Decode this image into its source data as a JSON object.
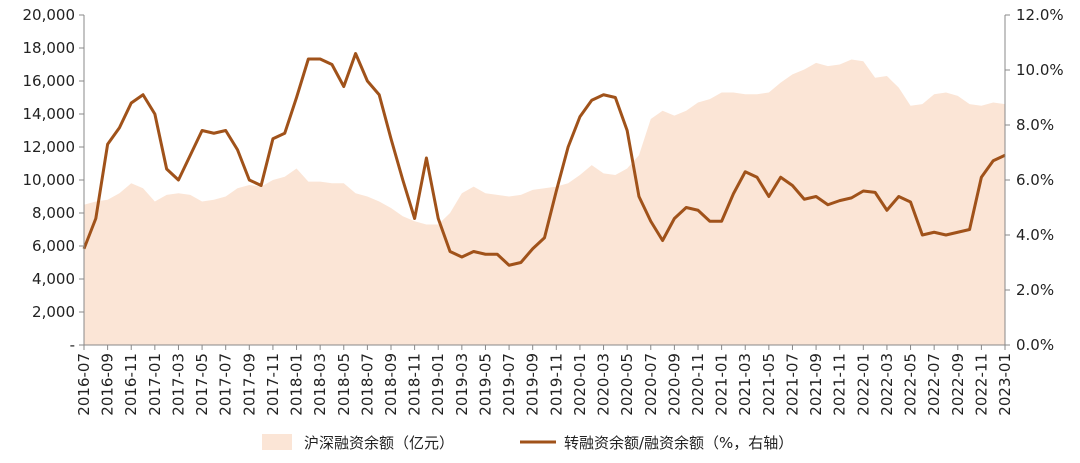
{
  "chart_data": {
    "type": "area",
    "categories": [
      "2016-07",
      "2016-08",
      "2016-09",
      "2016-10",
      "2016-11",
      "2016-12",
      "2017-01",
      "2017-02",
      "2017-03",
      "2017-04",
      "2017-05",
      "2017-06",
      "2017-07",
      "2017-08",
      "2017-09",
      "2017-10",
      "2017-11",
      "2017-12",
      "2018-01",
      "2018-02",
      "2018-03",
      "2018-04",
      "2018-05",
      "2018-06",
      "2018-07",
      "2018-08",
      "2018-09",
      "2018-10",
      "2018-11",
      "2018-12",
      "2019-01",
      "2019-02",
      "2019-03",
      "2019-04",
      "2019-05",
      "2019-06",
      "2019-07",
      "2019-08",
      "2019-09",
      "2019-10",
      "2019-11",
      "2019-12",
      "2020-01",
      "2020-02",
      "2020-03",
      "2020-04",
      "2020-05",
      "2020-06",
      "2020-07",
      "2020-08",
      "2020-09",
      "2020-10",
      "2020-11",
      "2020-12",
      "2021-01",
      "2021-02",
      "2021-03",
      "2021-04",
      "2021-05",
      "2021-06",
      "2021-07",
      "2021-08",
      "2021-09",
      "2021-10",
      "2021-11",
      "2021-12",
      "2022-01",
      "2022-02",
      "2022-03",
      "2022-04",
      "2022-05",
      "2022-06",
      "2022-07",
      "2022-08",
      "2022-09",
      "2022-10",
      "2022-11",
      "2022-12",
      "2023-01"
    ],
    "x_tick_labels": [
      "2016-07",
      "2016-09",
      "2016-11",
      "2017-01",
      "2017-03",
      "2017-05",
      "2017-07",
      "2017-09",
      "2017-11",
      "2018-01",
      "2018-03",
      "2018-05",
      "2018-07",
      "2018-09",
      "2018-11",
      "2019-01",
      "2019-03",
      "2019-05",
      "2019-07",
      "2019-09",
      "2019-11",
      "2020-01",
      "2020-03",
      "2020-05",
      "2020-07",
      "2020-09",
      "2020-11",
      "2021-01",
      "2021-03",
      "2021-05",
      "2021-07",
      "2021-09",
      "2021-11",
      "2022-01",
      "2022-03",
      "2022-05",
      "2022-07",
      "2022-09",
      "2022-11",
      "2023-01"
    ],
    "y_left": {
      "lim": [
        0,
        20000
      ],
      "ticks": [
        "-",
        "2,000",
        "4,000",
        "6,000",
        "8,000",
        "10,000",
        "12,000",
        "14,000",
        "16,000",
        "18,000",
        "20,000"
      ]
    },
    "y_right": {
      "lim": [
        0,
        12
      ],
      "ticks": [
        "0.0%",
        "2.0%",
        "4.0%",
        "6.0%",
        "8.0%",
        "10.0%",
        "12.0%"
      ]
    },
    "series": [
      {
        "name": "沪深融资余额（亿元）",
        "type": "area",
        "axis": "left",
        "color": "#fbe5d6",
        "values": [
          8500,
          8700,
          8800,
          9200,
          9800,
          9500,
          8700,
          9100,
          9200,
          9100,
          8700,
          8800,
          9000,
          9500,
          9700,
          9600,
          10000,
          10200,
          10700,
          9900,
          9900,
          9800,
          9800,
          9200,
          9000,
          8700,
          8300,
          7800,
          7500,
          7300,
          7300,
          8000,
          9200,
          9600,
          9200,
          9100,
          9000,
          9100,
          9400,
          9500,
          9600,
          9800,
          10300,
          10900,
          10400,
          10300,
          10700,
          11500,
          13700,
          14200,
          13900,
          14200,
          14700,
          14900,
          15300,
          15300,
          15200,
          15200,
          15300,
          15900,
          16400,
          16700,
          17100,
          16900,
          17000,
          17300,
          17200,
          16200,
          16300,
          15600,
          14500,
          14600,
          15200,
          15300,
          15100,
          14600,
          14500,
          14700,
          14600
        ]
      },
      {
        "name": "转融资余额/融资余额（%，右轴）",
        "type": "line",
        "axis": "right",
        "color": "#a0521a",
        "values": [
          3.5,
          4.6,
          7.3,
          7.9,
          8.8,
          9.1,
          8.4,
          6.4,
          6.0,
          6.9,
          7.8,
          7.7,
          7.8,
          7.1,
          6.0,
          5.8,
          7.5,
          7.7,
          9.0,
          10.4,
          10.4,
          10.2,
          9.4,
          10.6,
          9.6,
          9.1,
          7.5,
          6.0,
          4.6,
          6.8,
          4.6,
          3.4,
          3.2,
          3.4,
          3.3,
          3.3,
          2.9,
          3.0,
          3.5,
          3.9,
          5.6,
          7.2,
          8.3,
          8.9,
          9.1,
          9.0,
          7.8,
          5.4,
          4.5,
          3.8,
          4.6,
          5.0,
          4.9,
          4.5,
          4.5,
          5.5,
          6.3,
          6.1,
          5.4,
          6.1,
          5.8,
          5.3,
          5.4,
          5.1,
          5.25,
          5.35,
          5.6,
          5.55,
          4.9,
          5.4,
          5.2,
          4.0,
          4.1,
          4.0,
          4.1,
          4.2,
          6.1,
          6.7,
          6.9
        ]
      }
    ],
    "legend": "bottom-center",
    "grid": false
  }
}
